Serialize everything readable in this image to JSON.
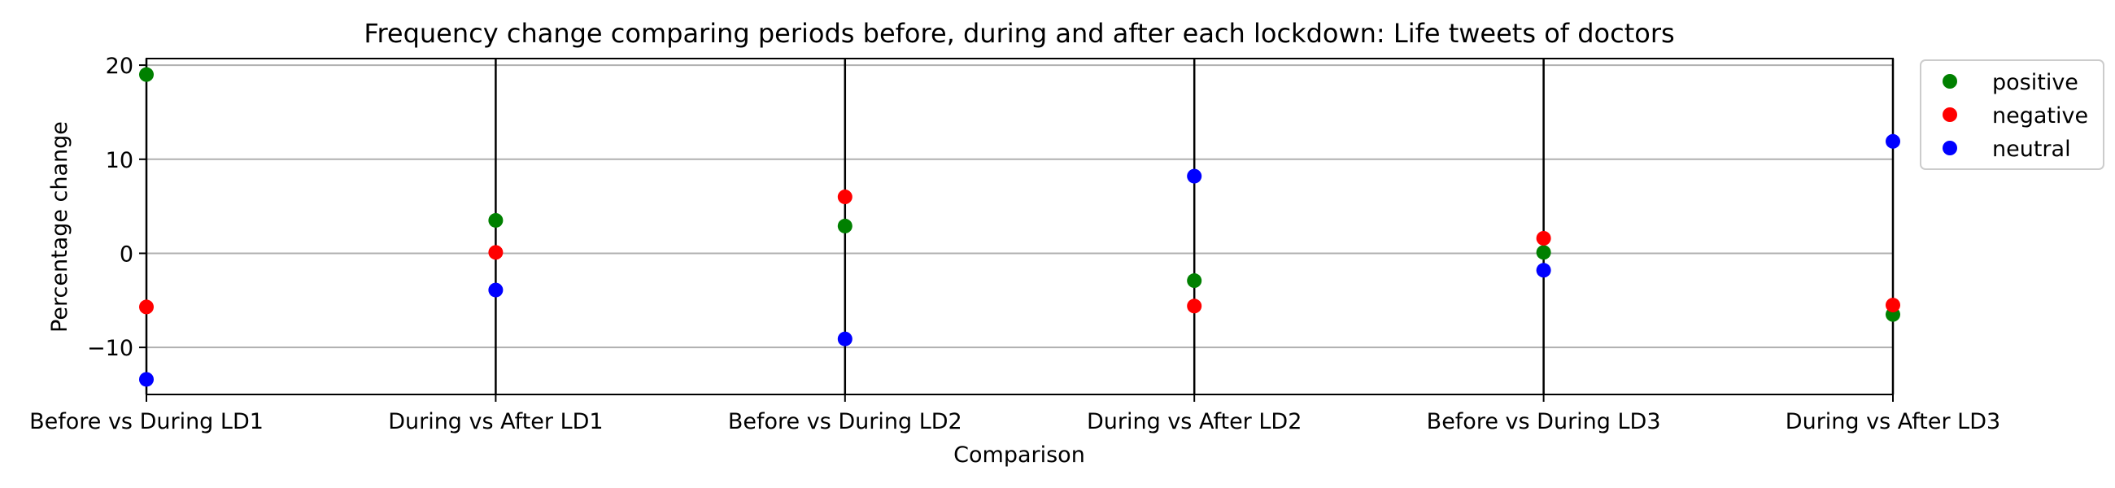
{
  "chart_data": {
    "type": "scatter",
    "title": "Frequency change comparing periods before, during and after each lockdown: Life tweets of doctors",
    "xlabel": "Comparison",
    "ylabel": "Percentage change",
    "categories": [
      "Before vs During LD1",
      "During vs After LD1",
      "Before vs During LD2",
      "During vs After LD2",
      "Before vs During LD3",
      "During vs After LD3"
    ],
    "ylim": [
      -15,
      20.7
    ],
    "yticks": [
      20,
      10,
      0,
      -10
    ],
    "ytick_labels": [
      "20",
      "10",
      "0",
      "−10"
    ],
    "grid": "horizontal",
    "category_lines": true,
    "legend_position": "outside-top-right",
    "series": [
      {
        "name": "positive",
        "color": "#008000",
        "values": [
          19.0,
          3.5,
          2.9,
          -2.9,
          0.1,
          -6.5
        ]
      },
      {
        "name": "negative",
        "color": "#ff0000",
        "values": [
          -5.7,
          0.1,
          6.0,
          -5.6,
          1.6,
          -5.5
        ]
      },
      {
        "name": "neutral",
        "color": "#0000ff",
        "values": [
          -13.4,
          -3.9,
          -9.1,
          8.2,
          -1.8,
          11.9
        ]
      }
    ]
  }
}
